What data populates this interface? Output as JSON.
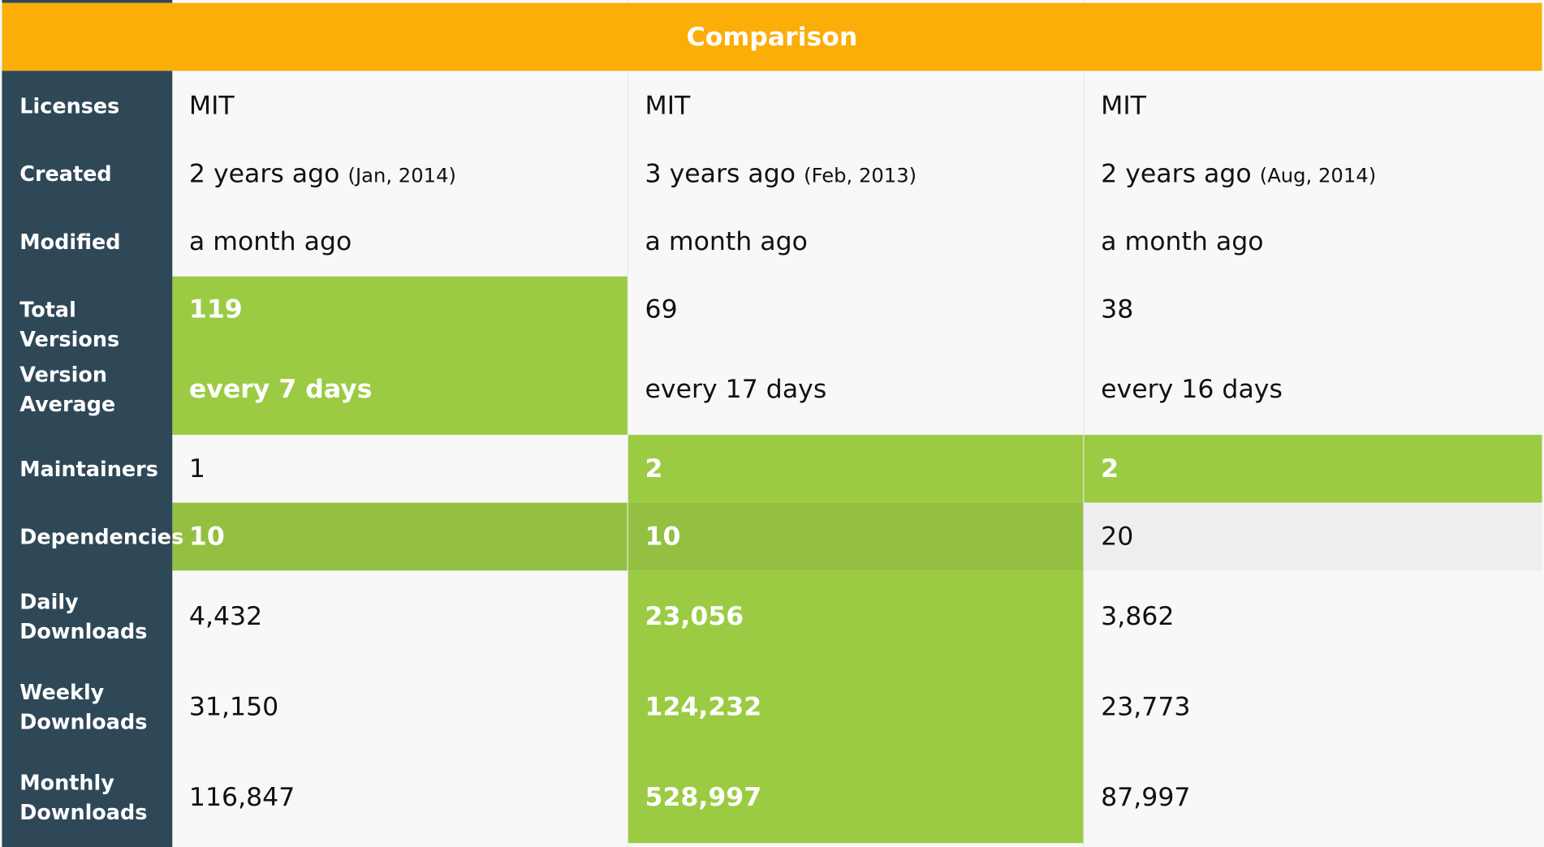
{
  "header": {
    "title": "Comparison"
  },
  "rows": [
    {
      "label": "Licenses",
      "values": [
        "MIT",
        "MIT",
        "MIT"
      ]
    },
    {
      "label": "Created",
      "values": [
        "2 years ago",
        "3 years ago",
        "2 years ago"
      ],
      "details": [
        "(Jan, 2014)",
        "(Feb, 2013)",
        "(Aug, 2014)"
      ]
    },
    {
      "label": "Modified",
      "values": [
        "a month ago",
        "a month ago",
        "a month ago"
      ]
    },
    {
      "label": "Total Versions",
      "values": [
        "119",
        "69",
        "38"
      ],
      "winner": [
        true,
        false,
        false
      ]
    },
    {
      "label_lines": [
        "Version",
        "Average"
      ],
      "values": [
        "every 7 days",
        "every 17 days",
        "every 16 days"
      ],
      "winner": [
        true,
        false,
        false
      ]
    },
    {
      "label": "Maintainers",
      "values": [
        "1",
        "2",
        "2"
      ],
      "winner": [
        false,
        true,
        true
      ]
    },
    {
      "label": "Dependencies",
      "values": [
        "10",
        "10",
        "20"
      ],
      "winner": [
        true,
        true,
        false
      ]
    },
    {
      "label_lines": [
        "Daily",
        "Downloads"
      ],
      "values": [
        "4,432",
        "23,056",
        "3,862"
      ],
      "winner": [
        false,
        true,
        false
      ]
    },
    {
      "label_lines": [
        "Weekly",
        "Downloads"
      ],
      "values": [
        "31,150",
        "124,232",
        "23,773"
      ],
      "winner": [
        false,
        true,
        false
      ]
    },
    {
      "label_lines": [
        "Monthly",
        "Downloads"
      ],
      "values": [
        "116,847",
        "528,997",
        "87,997"
      ],
      "winner": [
        false,
        true,
        false
      ]
    }
  ],
  "colors": {
    "header": "#fbad08",
    "row_header": "#2f4858",
    "winner_cell": "#9bcb43",
    "body": "#f8f8f8"
  }
}
